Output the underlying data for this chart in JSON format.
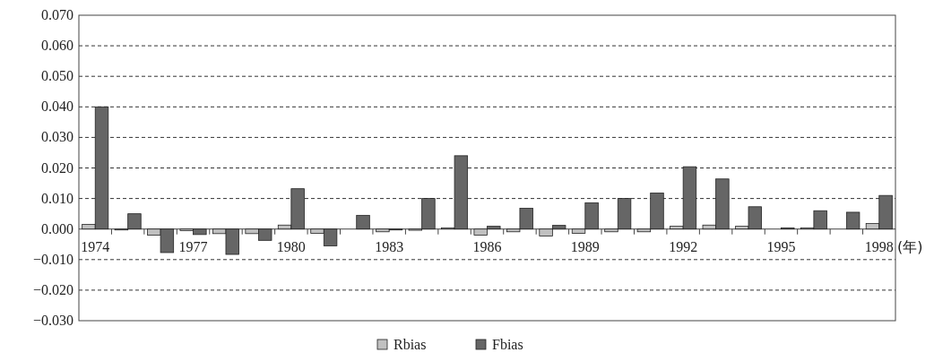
{
  "chart_data": {
    "type": "bar",
    "xlabel": "(年)",
    "grid": "y",
    "legend": "bottom",
    "categories": [
      "1974",
      null,
      null,
      "1977",
      null,
      null,
      "1980",
      null,
      null,
      "1983",
      null,
      null,
      "1986",
      null,
      null,
      "1989",
      null,
      null,
      "1992",
      null,
      null,
      "1995",
      null,
      null,
      "1998"
    ],
    "series": [
      {
        "name": "Rbias",
        "color": "#c0c0c0",
        "values": [
          0.0015,
          -0.0003,
          -0.002,
          -0.0005,
          -0.0015,
          -0.0015,
          0.0013,
          -0.0014,
          null,
          -0.0009,
          -0.0004,
          0.0004,
          -0.002,
          -0.0009,
          -0.0023,
          -0.0014,
          -0.0009,
          -0.0009,
          0.0009,
          0.0013,
          0.0009,
          null,
          0.0004,
          null,
          0.0018
        ]
      },
      {
        "name": "Fbias",
        "color": "#666666",
        "values": [
          0.04,
          0.005,
          -0.0077,
          -0.0018,
          -0.0083,
          -0.0037,
          0.0132,
          -0.0055,
          0.0045,
          -0.0003,
          0.01,
          0.024,
          0.0009,
          0.0068,
          0.0012,
          0.0086,
          0.01,
          0.0118,
          0.0204,
          0.0164,
          0.0073,
          0.0004,
          0.006,
          0.0055,
          0.011
        ]
      }
    ],
    "ylim": [
      -0.03,
      0.07
    ],
    "yticks": [
      {
        "value": 0.07,
        "label": "0.070"
      },
      {
        "value": 0.06,
        "label": "0.060"
      },
      {
        "value": 0.05,
        "label": "0.050"
      },
      {
        "value": 0.04,
        "label": "0.040"
      },
      {
        "value": 0.03,
        "label": "0.030"
      },
      {
        "value": 0.02,
        "label": "0.020"
      },
      {
        "value": 0.01,
        "label": "0.010"
      },
      {
        "value": 0,
        "label": "0.000"
      },
      {
        "value": -0.01,
        "label": "−0.010"
      },
      {
        "value": -0.02,
        "label": "−0.020"
      },
      {
        "value": -0.03,
        "label": "−0.030"
      }
    ]
  }
}
